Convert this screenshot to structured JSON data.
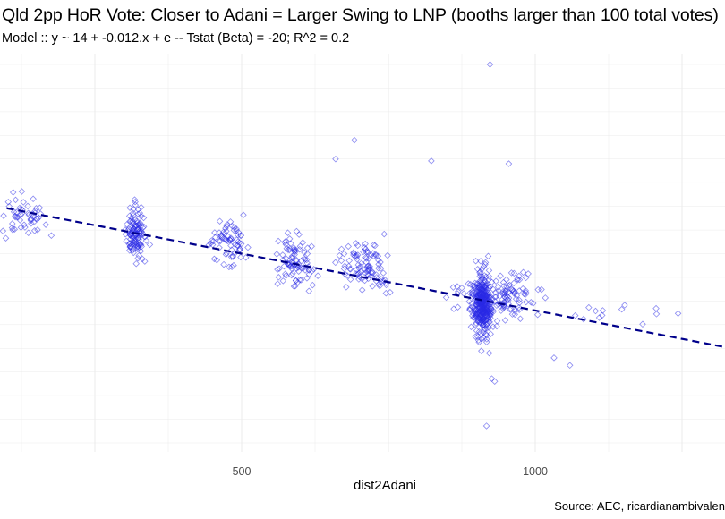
{
  "title": "Qld 2pp HoR Vote: Closer to Adani = Larger Swing to LNP (booths larger than 100 total votes)",
  "subtitle": "Model :: y ~ 14 + -0.012.x + e -- Tstat (Beta) = -20; R^2 = 0.2",
  "caption": "Source: AEC, ricardianambivalen",
  "colors": {
    "points": "#2a2ae6",
    "fit_line": "#00008b",
    "grid": "#ebebeb"
  },
  "chart_data": {
    "type": "scatter",
    "title": "Qld 2pp HoR Vote: Closer to Adani = Larger Swing to LNP (booths larger than 100 total votes)",
    "subtitle": "Model :: y ~ 14 + -0.012.x + e -- Tstat (Beta) = -20; R^2 = 0.2",
    "xlabel": "dist2Adani",
    "ylabel": "",
    "x_ticks": [
      500,
      1000
    ],
    "xlim": [
      80,
      1420
    ],
    "ylim": [
      -12,
      28
    ],
    "y_tick_labels_shown": false,
    "grid": true,
    "marker": "open-diamond",
    "fit_line": {
      "intercept": 14,
      "slope": -0.012,
      "style": "dashed"
    },
    "series": [
      {
        "clusters": [
          {
            "x_center": 120,
            "x_spread": 70,
            "y_center": 11.8,
            "y_spread": 2.6,
            "n": 60
          },
          {
            "x_center": 320,
            "x_spread": 22,
            "y_center": 10.2,
            "y_spread": 3.0,
            "n": 120
          },
          {
            "x_center": 475,
            "x_spread": 45,
            "y_center": 9.0,
            "y_spread": 3.0,
            "n": 70
          },
          {
            "x_center": 590,
            "x_spread": 40,
            "y_center": 7.3,
            "y_spread": 3.0,
            "n": 90
          },
          {
            "x_center": 710,
            "x_spread": 60,
            "y_center": 6.8,
            "y_spread": 3.0,
            "n": 100
          },
          {
            "x_center": 910,
            "x_spread": 20,
            "y_center": 2.6,
            "y_spread": 3.8,
            "n": 330
          },
          {
            "x_center": 940,
            "x_spread": 90,
            "y_center": 3.6,
            "y_spread": 3.2,
            "n": 140
          },
          {
            "x_center": 1150,
            "x_spread": 180,
            "y_center": 1.5,
            "y_spread": 2.0,
            "n": 12
          }
        ],
        "points": [
          {
            "x": 923,
            "y": 28
          },
          {
            "x": 692,
            "y": 20
          },
          {
            "x": 660,
            "y": 18
          },
          {
            "x": 955,
            "y": 17.5
          },
          {
            "x": 823,
            "y": 17.8
          },
          {
            "x": 917,
            "y": -10.2
          },
          {
            "x": 1404,
            "y": 3.3
          },
          {
            "x": 1115,
            "y": 2
          },
          {
            "x": 1059,
            "y": -3.8
          },
          {
            "x": 1032,
            "y": -3
          },
          {
            "x": 931,
            "y": -5.5
          },
          {
            "x": 926,
            "y": -5.2
          },
          {
            "x": 104,
            "y": 13
          }
        ]
      }
    ]
  }
}
